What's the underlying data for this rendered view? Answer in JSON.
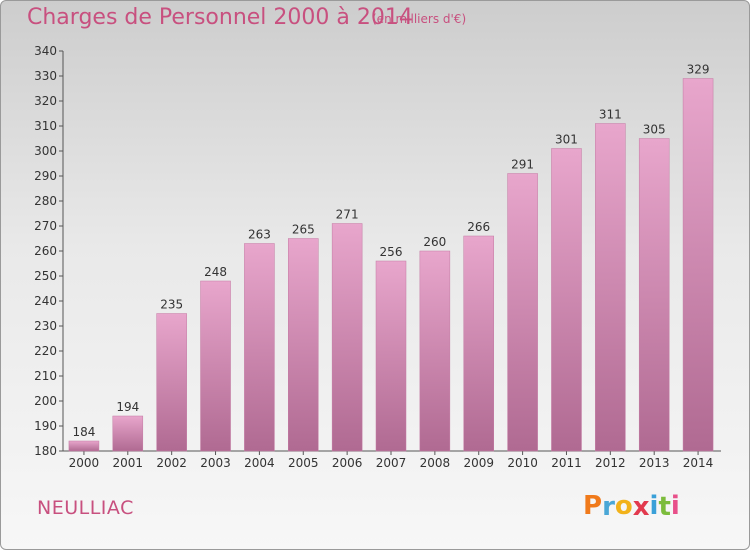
{
  "title": "Charges de Personnel 2000 à 2014",
  "unit_note": "(en milliers d'€)",
  "commune": "NEULLIAC",
  "logo": {
    "letters": [
      "P",
      "r",
      "o",
      "x",
      "i",
      "t",
      "i"
    ],
    "colors": [
      "#f07a1b",
      "#4aa7d6",
      "#f2b21a",
      "#e23a4e",
      "#3aa0d8",
      "#7cbc3c",
      "#e8508a"
    ]
  },
  "colors": {
    "bar_top": "#e8a6cc",
    "bar_bottom": "#b06a92",
    "axis": "#555555",
    "accent": "#c8507f"
  },
  "chart_data": {
    "type": "bar",
    "categories": [
      "2000",
      "2001",
      "2002",
      "2003",
      "2004",
      "2005",
      "2006",
      "2007",
      "2008",
      "2009",
      "2010",
      "2011",
      "2012",
      "2013",
      "2014"
    ],
    "values": [
      184,
      194,
      235,
      248,
      263,
      265,
      271,
      256,
      260,
      266,
      291,
      301,
      311,
      305,
      329
    ],
    "ylim": [
      180,
      340
    ],
    "yticks": [
      180,
      190,
      200,
      210,
      220,
      230,
      240,
      250,
      260,
      270,
      280,
      290,
      300,
      310,
      320,
      330,
      340
    ],
    "title": "Charges de Personnel 2000 à 2014",
    "xlabel": "",
    "ylabel": "",
    "grid": false
  }
}
